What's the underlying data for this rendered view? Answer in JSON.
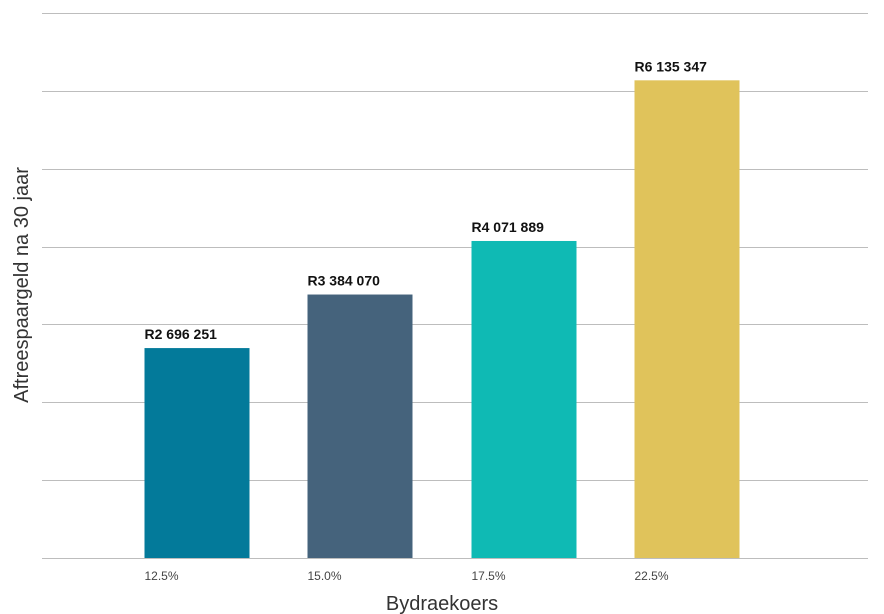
{
  "chart_data": {
    "type": "bar",
    "title": "",
    "xlabel": "Bydraekoers",
    "ylabel": "Aftreespaargeld na 30 jaar",
    "categories": [
      "12.5%",
      "15.0%",
      "17.5%",
      "22.5%"
    ],
    "values": [
      2696251,
      3384070,
      4071889,
      6135347
    ],
    "value_labels": [
      "R2 696 251",
      "R3 384 070",
      "R4 071 889",
      "R6 135 347"
    ],
    "bar_colors": [
      "#037a9a",
      "#45637c",
      "#0fbab4",
      "#e0c35b"
    ],
    "ylim": [
      0,
      7000000
    ],
    "grid": true,
    "y_tick_labels_shown": false,
    "legend": "none"
  }
}
